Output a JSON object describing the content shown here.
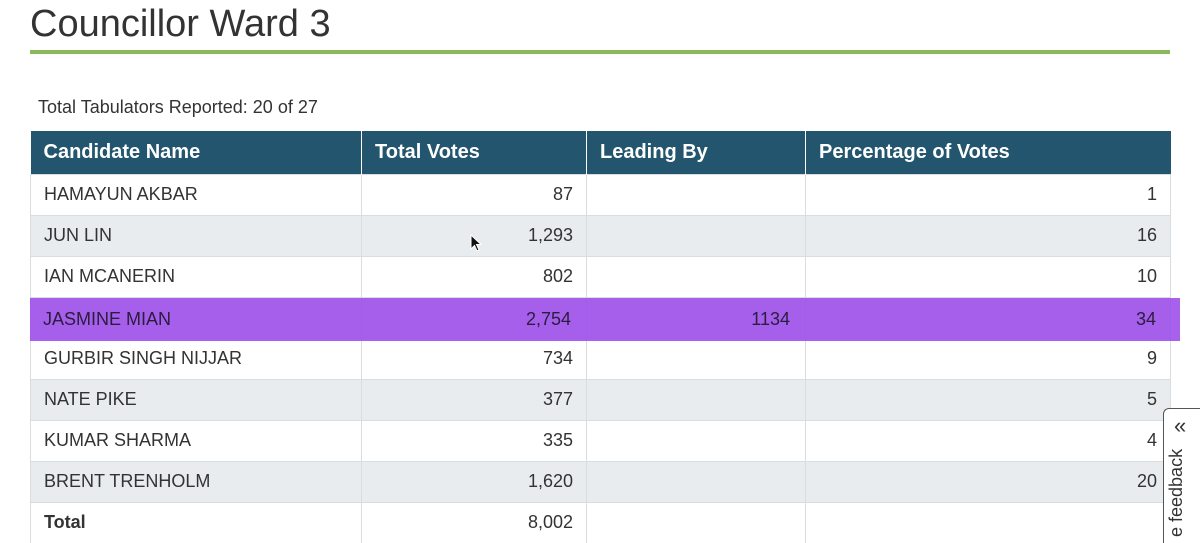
{
  "page": {
    "title": "Councillor Ward 3",
    "tabulators": "Total Tabulators Reported: 20 of 27"
  },
  "table": {
    "headers": {
      "candidate": "Candidate Name",
      "votes": "Total Votes",
      "leading": "Leading By",
      "percentage": "Percentage of Votes"
    },
    "rows": [
      {
        "name": "HAMAYUN AKBAR",
        "votes": "87",
        "leading": "",
        "percentage": "1"
      },
      {
        "name": "JUN LIN",
        "votes": "1,293",
        "leading": "",
        "percentage": "16"
      },
      {
        "name": "IAN MCANERIN",
        "votes": "802",
        "leading": "",
        "percentage": "10"
      },
      {
        "name": "JASMINE MIAN",
        "votes": "2,754",
        "leading": "1134",
        "percentage": "34"
      },
      {
        "name": "GURBIR SINGH NIJJAR",
        "votes": "734",
        "leading": "",
        "percentage": "9"
      },
      {
        "name": "NATE PIKE",
        "votes": "377",
        "leading": "",
        "percentage": "5"
      },
      {
        "name": "KUMAR SHARMA",
        "votes": "335",
        "leading": "",
        "percentage": "4"
      },
      {
        "name": "BRENT TRENHOLM",
        "votes": "1,620",
        "leading": "",
        "percentage": "20"
      }
    ],
    "total": {
      "label": "Total",
      "votes": "8,002"
    }
  },
  "feedback": {
    "label": "e feedback",
    "chevron": "«"
  },
  "colors": {
    "header_bg": "#23566e",
    "accent_rule": "#8cb85c",
    "highlight": "#9b4beb",
    "row_alt": "#e8ecef"
  }
}
